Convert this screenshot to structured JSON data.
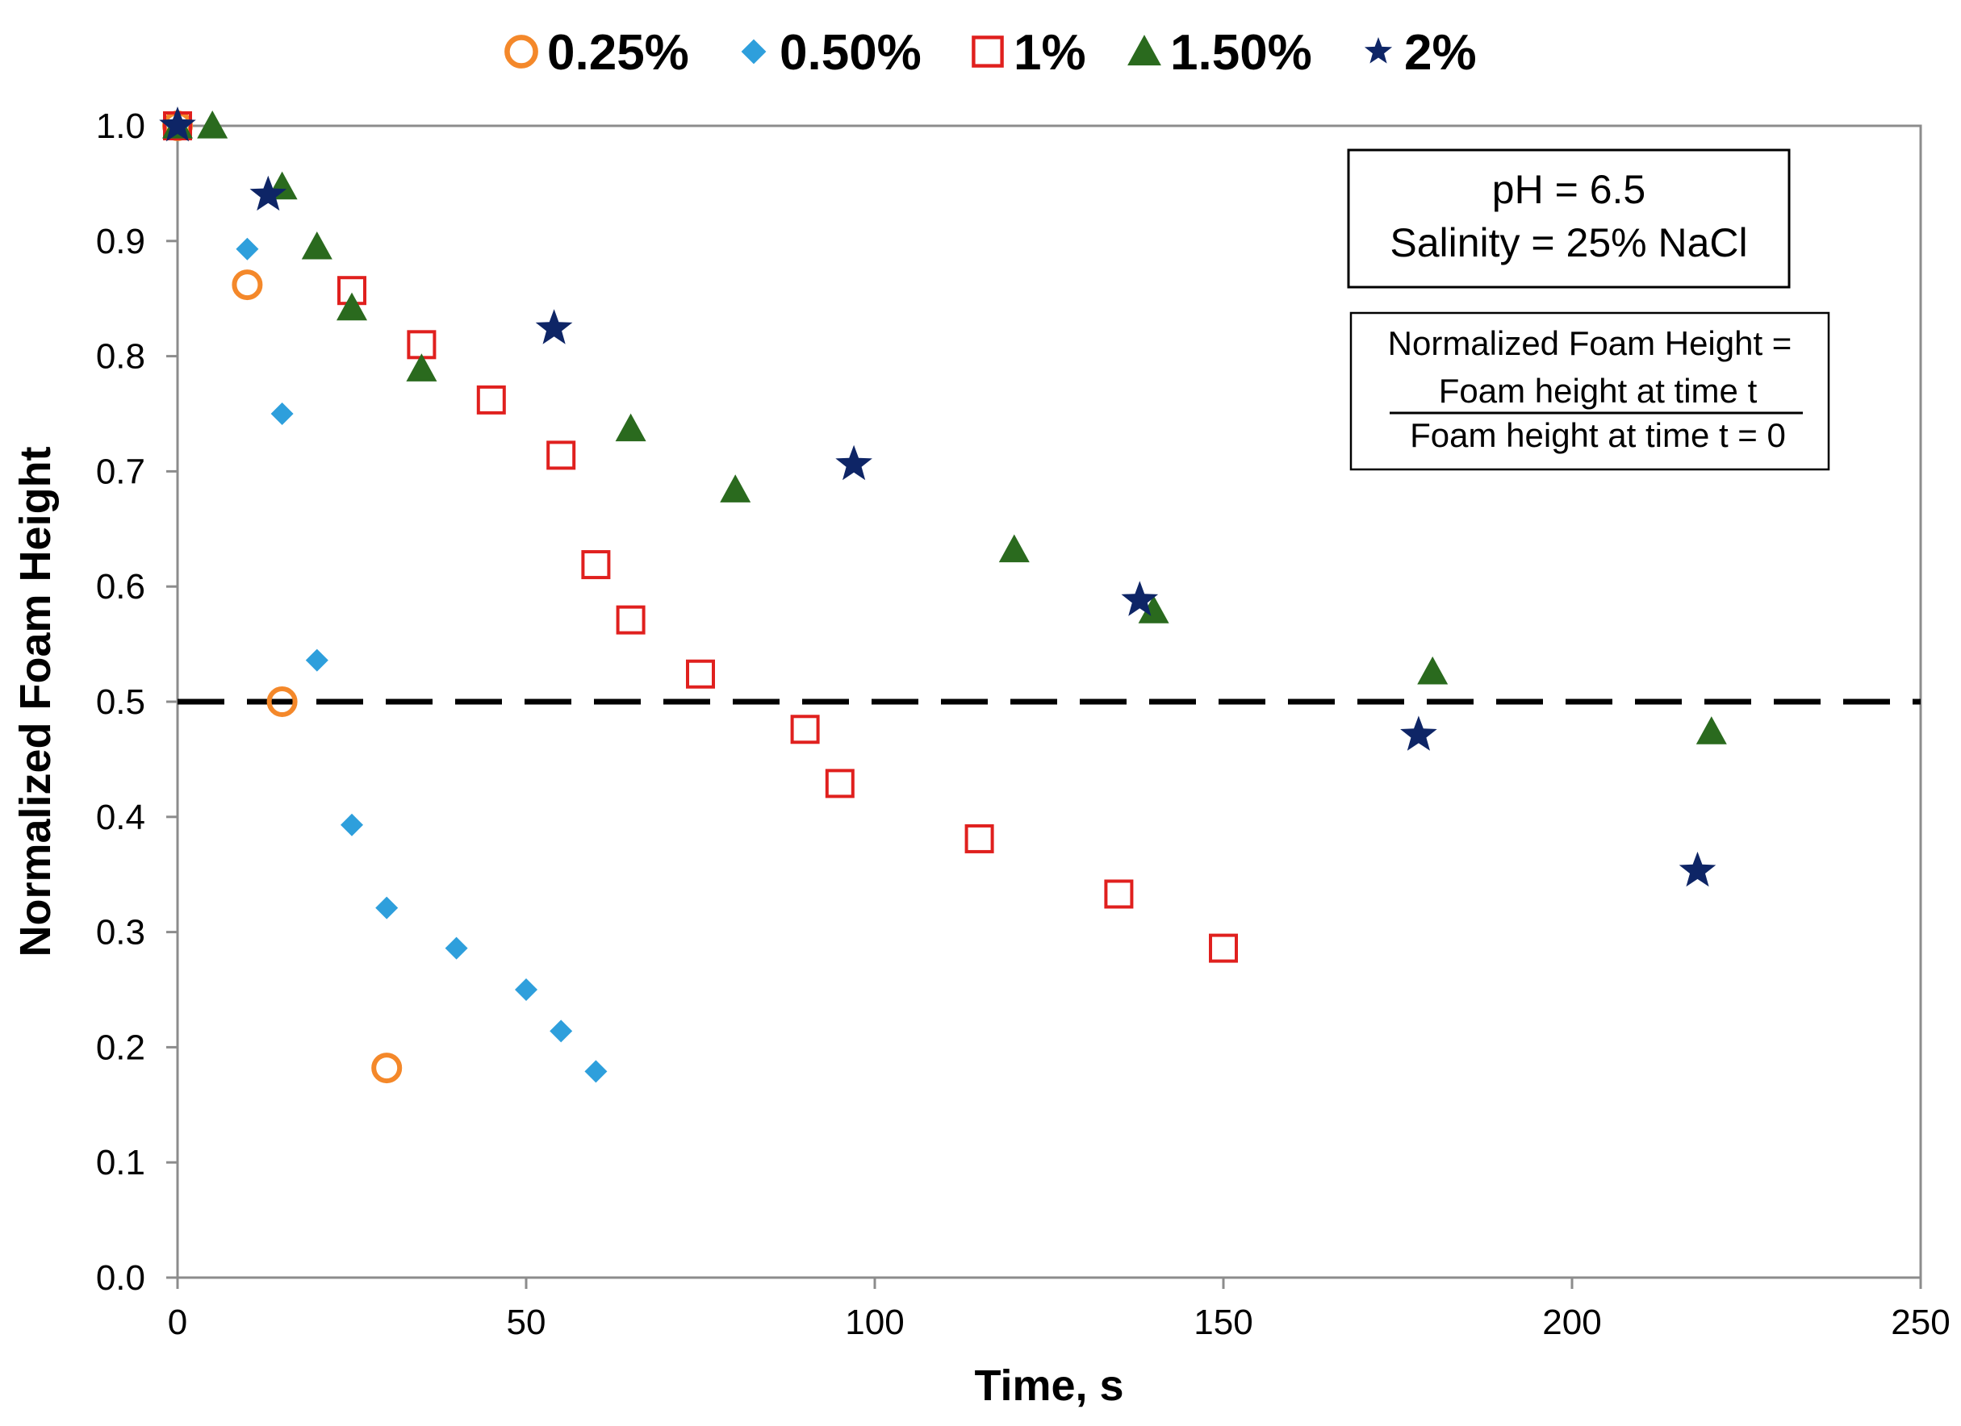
{
  "chart_data": {
    "type": "scatter",
    "xlabel": "Time, s",
    "ylabel": "Normalized Foam Height",
    "xlim": [
      0,
      250
    ],
    "ylim": [
      0,
      1.0
    ],
    "xticks": [
      0,
      50,
      100,
      150,
      200,
      250
    ],
    "yticks": [
      0.0,
      0.1,
      0.2,
      0.3,
      0.4,
      0.5,
      0.6,
      0.7,
      0.8,
      0.9,
      1.0
    ],
    "ytick_labels": [
      "0.0",
      "0.1",
      "0.2",
      "0.3",
      "0.4",
      "0.5",
      "0.6",
      "0.7",
      "0.8",
      "0.9",
      "1.0"
    ],
    "xtick_labels": [
      "0",
      "50",
      "100",
      "150",
      "200",
      "250"
    ],
    "grid": false,
    "legend_position": "top",
    "reference_line": {
      "y": 0.5,
      "style": "dashed",
      "color": "#000000"
    },
    "annotation_conditions": [
      "pH = 6.5",
      "Salinity  = 25% NaCl"
    ],
    "annotation_formula": {
      "lhs": "Normalized Foam Height =",
      "numerator": "Foam height at time t",
      "denominator": "Foam height at time t = 0"
    },
    "series": [
      {
        "name": "0.25%",
        "marker": "open-circle",
        "color": "#F4882A",
        "x": [
          0,
          10,
          15,
          30
        ],
        "y": [
          1.0,
          0.862,
          0.5,
          0.182
        ]
      },
      {
        "name": "0.50%",
        "marker": "diamond",
        "color": "#2E9FDC",
        "x": [
          0,
          10,
          15,
          20,
          25,
          30,
          40,
          50,
          55,
          60
        ],
        "y": [
          1.0,
          0.893,
          0.75,
          0.536,
          0.393,
          0.321,
          0.286,
          0.25,
          0.214,
          0.179
        ]
      },
      {
        "name": "1%",
        "marker": "open-square",
        "color": "#E0201E",
        "x": [
          0,
          25,
          35,
          45,
          55,
          60,
          65,
          75,
          90,
          95,
          115,
          135,
          150
        ],
        "y": [
          1.0,
          0.857,
          0.81,
          0.762,
          0.714,
          0.619,
          0.571,
          0.524,
          0.476,
          0.429,
          0.381,
          0.333,
          0.286
        ]
      },
      {
        "name": "1.50%",
        "marker": "triangle",
        "color": "#2A6A1E",
        "x": [
          0,
          5,
          15,
          20,
          25,
          35,
          65,
          80,
          120,
          140,
          180,
          220
        ],
        "y": [
          1.0,
          1.0,
          0.947,
          0.895,
          0.842,
          0.789,
          0.737,
          0.684,
          0.632,
          0.579,
          0.526,
          0.474
        ]
      },
      {
        "name": "2%",
        "marker": "star",
        "color": "#0E2566",
        "x": [
          0,
          13,
          54,
          97,
          138,
          178,
          218
        ],
        "y": [
          1.0,
          0.94,
          0.824,
          0.706,
          0.588,
          0.471,
          0.353
        ]
      }
    ]
  }
}
